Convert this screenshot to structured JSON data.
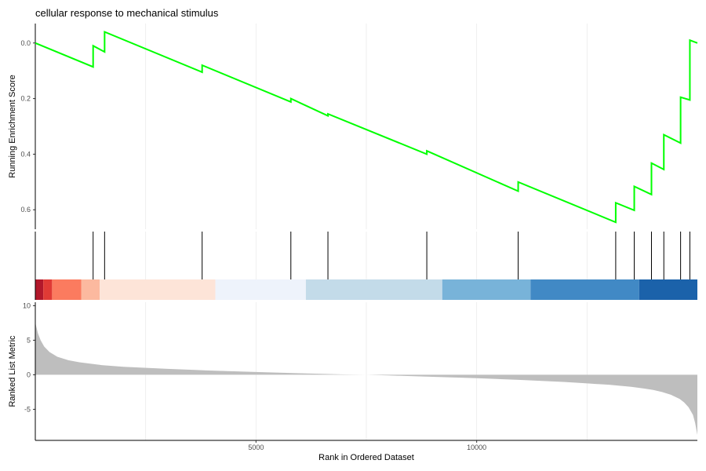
{
  "chart_data": {
    "type": "line",
    "title": "cellular response to mechanical stimulus",
    "xlabel": "Rank in Ordered Dataset",
    "ylabel_top": "Running Enrichment Score",
    "ylabel_bottom": "Ranked List Metric",
    "xlim": [
      0,
      15000
    ],
    "x_ticks": [
      5000,
      10000
    ],
    "x_tick_labels": [
      "5000",
      "10000"
    ],
    "top_ylim": [
      -0.67,
      0.07
    ],
    "top_y_ticks": [
      0.0,
      -0.2,
      -0.4,
      -0.6
    ],
    "top_y_tick_labels": [
      "0.0",
      "0.2",
      "0.4",
      "0.6"
    ],
    "bottom_ylim": [
      -9.5,
      10.5
    ],
    "bottom_y_ticks": [
      10,
      5,
      0,
      -5
    ],
    "bottom_y_tick_labels": [
      "10",
      "5",
      "0",
      "-5"
    ],
    "grid": true,
    "line_color": "#00ff00",
    "fill_color": "#bebebe",
    "hits": [
      1310,
      1570,
      3780,
      5790,
      6630,
      8870,
      10940,
      13150,
      13570,
      13960,
      14240,
      14620,
      14830
    ],
    "running_es": {
      "start": 0.0,
      "end": 0.0,
      "jumps_from": [
        -0.086,
        -0.032,
        -0.105,
        -0.212,
        -0.262,
        -0.4,
        -0.533,
        -0.645,
        -0.602,
        -0.545,
        -0.455,
        -0.36,
        -0.205
      ],
      "jumps_to": [
        -0.01,
        0.04,
        -0.08,
        -0.2,
        -0.255,
        -0.388,
        -0.5,
        -0.575,
        -0.516,
        -0.432,
        -0.33,
        -0.195,
        0.01
      ]
    },
    "ranked_metric": {
      "x": [
        0,
        20,
        60,
        120,
        200,
        320,
        500,
        750,
        1000,
        1500,
        2000,
        3000,
        4000,
        5000,
        6000,
        7000,
        7500,
        8000,
        9000,
        10000,
        11000,
        12000,
        12500,
        13000,
        13500,
        13800,
        14000,
        14200,
        14400,
        14600,
        14700,
        14800,
        14900,
        14950,
        15000
      ],
      "y": [
        7.6,
        7.0,
        6.0,
        5.0,
        4.1,
        3.3,
        2.6,
        2.1,
        1.8,
        1.4,
        1.15,
        0.85,
        0.6,
        0.4,
        0.22,
        0.05,
        0.0,
        -0.1,
        -0.3,
        -0.5,
        -0.75,
        -1.05,
        -1.25,
        -1.45,
        -1.75,
        -2.0,
        -2.2,
        -2.5,
        -2.9,
        -3.5,
        -4.0,
        -4.7,
        -5.8,
        -7.0,
        -8.7
      ]
    },
    "color_bar": {
      "segments": [
        {
          "from": 0,
          "to": 180,
          "color": "#b2182b"
        },
        {
          "from": 180,
          "to": 380,
          "color": "#e03a35"
        },
        {
          "from": 380,
          "to": 1040,
          "color": "#fb7b5f"
        },
        {
          "from": 1040,
          "to": 1460,
          "color": "#fcb99f"
        },
        {
          "from": 1460,
          "to": 4080,
          "color": "#fde4d8"
        },
        {
          "from": 4080,
          "to": 6130,
          "color": "#eef3fb"
        },
        {
          "from": 6130,
          "to": 9220,
          "color": "#c3dbe9"
        },
        {
          "from": 9220,
          "to": 11220,
          "color": "#78b3d9"
        },
        {
          "from": 11220,
          "to": 13680,
          "color": "#4189c5"
        },
        {
          "from": 13680,
          "to": 15000,
          "color": "#1b62aa"
        }
      ]
    }
  }
}
